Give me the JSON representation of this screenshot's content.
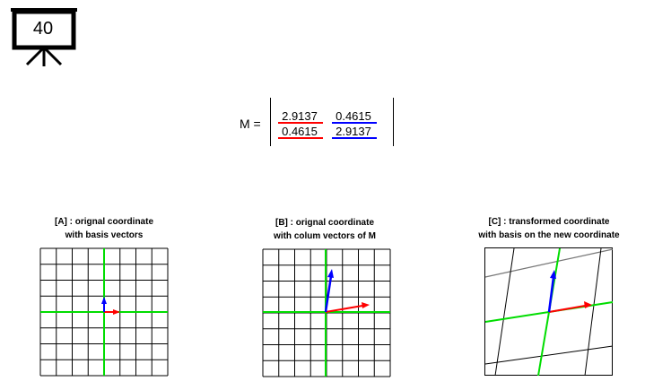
{
  "board_number": "40",
  "matrix": {
    "label": "M =",
    "rows": [
      [
        "2.9137",
        "0.4615"
      ],
      [
        "0.4615",
        "2.9137"
      ]
    ]
  },
  "panels": [
    {
      "title_line1": "[A] : orignal coordinate",
      "title_line2": "with basis vectors"
    },
    {
      "title_line1": "[B] : orignal coordinate",
      "title_line2": "with colum vectors of M"
    },
    {
      "title_line1": "[C] : transformed coordinate",
      "title_line2": "with basis on the new coordinate"
    }
  ],
  "colors": {
    "first_column": "#ff0000",
    "second_column": "#0000ff",
    "axis": "#00dd00"
  }
}
